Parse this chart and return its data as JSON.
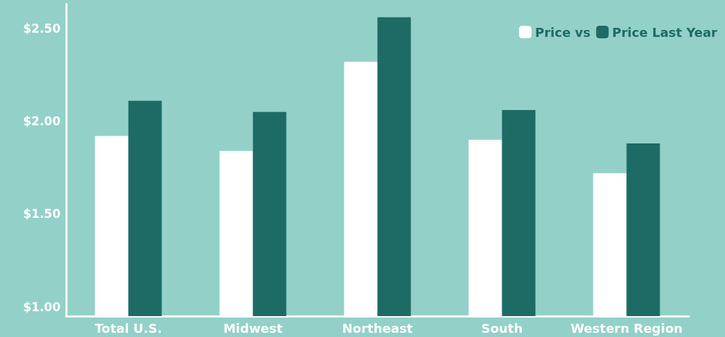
{
  "chart_data": {
    "type": "bar",
    "categories": [
      "Total U.S.",
      "Midwest",
      "Northeast",
      "South",
      "Western Region"
    ],
    "series": [
      {
        "name": "Price vs",
        "color": "#ffffff",
        "values": [
          1.92,
          1.84,
          2.32,
          1.9,
          1.72
        ]
      },
      {
        "name": "Price Last Year",
        "color": "#1e6b66",
        "values": [
          2.11,
          2.05,
          2.56,
          2.06,
          1.88
        ]
      }
    ],
    "ylim": [
      0.95,
      2.63
    ],
    "yticks": [
      {
        "value": 1.0,
        "label": "$1.00"
      },
      {
        "value": 1.5,
        "label": "$1.50"
      },
      {
        "value": 2.0,
        "label": "$2.00"
      },
      {
        "value": 2.5,
        "label": "$2.50"
      }
    ],
    "grid": false,
    "legend": "top right"
  }
}
